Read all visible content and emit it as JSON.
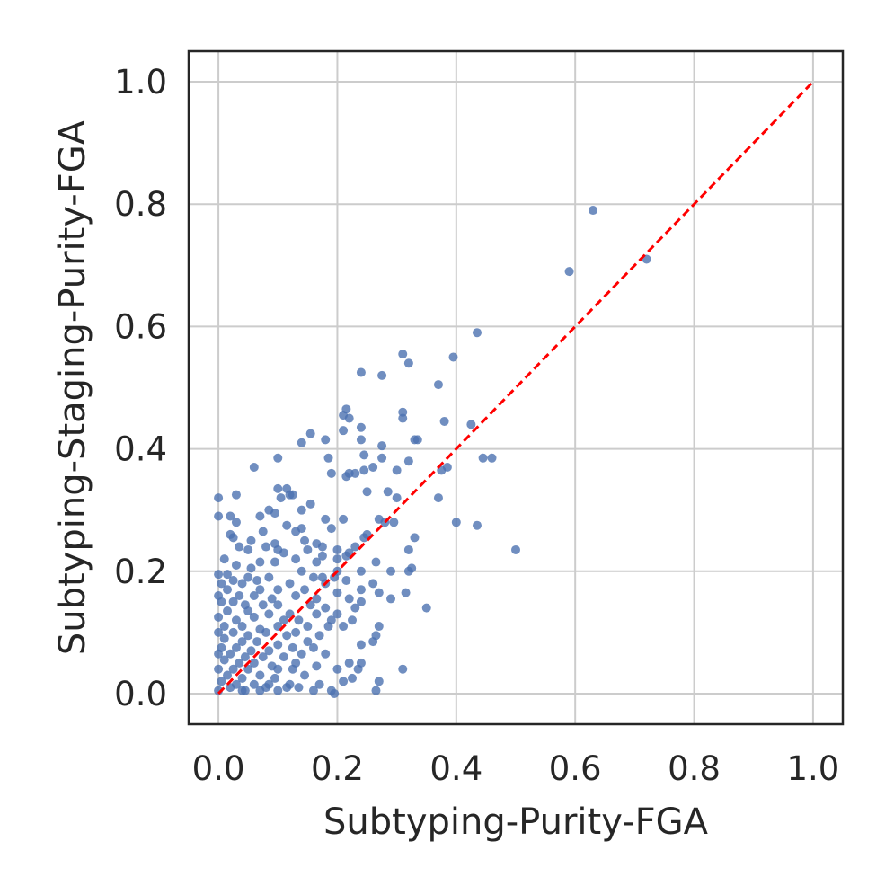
{
  "chart_data": {
    "type": "scatter",
    "title": "",
    "xlabel": "Subtyping-Purity-FGA",
    "ylabel": "Subtyping-Staging-Purity-FGA",
    "xlim": [
      -0.05,
      1.05
    ],
    "ylim": [
      -0.05,
      1.05
    ],
    "xticks": [
      "0.0",
      "0.2",
      "0.4",
      "0.6",
      "0.8",
      "1.0"
    ],
    "yticks": [
      "0.0",
      "0.2",
      "0.4",
      "0.6",
      "0.8",
      "1.0"
    ],
    "xtick_values": [
      0.0,
      0.2,
      0.4,
      0.6,
      0.8,
      1.0
    ],
    "ytick_values": [
      0.0,
      0.2,
      0.4,
      0.6,
      0.8,
      1.0
    ],
    "grid": true,
    "reference_line": {
      "x": [
        0,
        1
      ],
      "y": [
        0,
        1
      ],
      "style": "dashed",
      "color": "#ff0000"
    },
    "point_color": "#4c72b0",
    "points": [
      [
        0.63,
        0.79
      ],
      [
        0.72,
        0.71
      ],
      [
        0.59,
        0.69
      ],
      [
        0.435,
        0.59
      ],
      [
        0.31,
        0.555
      ],
      [
        0.32,
        0.54
      ],
      [
        0.395,
        0.55
      ],
      [
        0.24,
        0.525
      ],
      [
        0.275,
        0.52
      ],
      [
        0.37,
        0.505
      ],
      [
        0.215,
        0.465
      ],
      [
        0.31,
        0.46
      ],
      [
        0.21,
        0.455
      ],
      [
        0.22,
        0.45
      ],
      [
        0.31,
        0.45
      ],
      [
        0.38,
        0.445
      ],
      [
        0.425,
        0.44
      ],
      [
        0.24,
        0.435
      ],
      [
        0.155,
        0.425
      ],
      [
        0.21,
        0.43
      ],
      [
        0.33,
        0.415
      ],
      [
        0.335,
        0.415
      ],
      [
        0.14,
        0.41
      ],
      [
        0.18,
        0.415
      ],
      [
        0.24,
        0.415
      ],
      [
        0.275,
        0.405
      ],
      [
        0.245,
        0.39
      ],
      [
        0.275,
        0.385
      ],
      [
        0.185,
        0.385
      ],
      [
        0.1,
        0.385
      ],
      [
        0.32,
        0.38
      ],
      [
        0.445,
        0.385
      ],
      [
        0.46,
        0.385
      ],
      [
        0.385,
        0.37
      ],
      [
        0.375,
        0.365
      ],
      [
        0.3,
        0.365
      ],
      [
        0.245,
        0.365
      ],
      [
        0.23,
        0.36
      ],
      [
        0.215,
        0.355
      ],
      [
        0.22,
        0.36
      ],
      [
        0.19,
        0.36
      ],
      [
        0.26,
        0.37
      ],
      [
        0.06,
        0.37
      ],
      [
        0.1,
        0.335
      ],
      [
        0.115,
        0.335
      ],
      [
        0.12,
        0.325
      ],
      [
        0.125,
        0.325
      ],
      [
        0.105,
        0.32
      ],
      [
        0.285,
        0.33
      ],
      [
        0.25,
        0.33
      ],
      [
        0.03,
        0.325
      ],
      [
        0.0,
        0.32
      ],
      [
        0.3,
        0.32
      ],
      [
        0.37,
        0.32
      ],
      [
        0.155,
        0.31
      ],
      [
        0.14,
        0.3
      ],
      [
        0.085,
        0.3
      ],
      [
        0.095,
        0.295
      ],
      [
        0.07,
        0.29
      ],
      [
        0.0,
        0.29
      ],
      [
        0.02,
        0.29
      ],
      [
        0.03,
        0.28
      ],
      [
        0.18,
        0.285
      ],
      [
        0.21,
        0.285
      ],
      [
        0.27,
        0.285
      ],
      [
        0.28,
        0.28
      ],
      [
        0.295,
        0.28
      ],
      [
        0.4,
        0.28
      ],
      [
        0.435,
        0.275
      ],
      [
        0.115,
        0.275
      ],
      [
        0.13,
        0.265
      ],
      [
        0.14,
        0.27
      ],
      [
        0.19,
        0.27
      ],
      [
        0.075,
        0.265
      ],
      [
        0.02,
        0.26
      ],
      [
        0.025,
        0.255
      ],
      [
        0.25,
        0.26
      ],
      [
        0.245,
        0.255
      ],
      [
        0.33,
        0.255
      ],
      [
        0.055,
        0.25
      ],
      [
        0.145,
        0.25
      ],
      [
        0.08,
        0.24
      ],
      [
        0.095,
        0.245
      ],
      [
        0.165,
        0.245
      ],
      [
        0.175,
        0.24
      ],
      [
        0.23,
        0.24
      ],
      [
        0.035,
        0.24
      ],
      [
        0.05,
        0.235
      ],
      [
        0.1,
        0.235
      ],
      [
        0.11,
        0.23
      ],
      [
        0.15,
        0.235
      ],
      [
        0.2,
        0.235
      ],
      [
        0.22,
        0.23
      ],
      [
        0.5,
        0.235
      ],
      [
        0.32,
        0.235
      ],
      [
        0.175,
        0.225
      ],
      [
        0.2,
        0.22
      ],
      [
        0.215,
        0.225
      ],
      [
        0.165,
        0.215
      ],
      [
        0.13,
        0.22
      ],
      [
        0.07,
        0.215
      ],
      [
        0.095,
        0.215
      ],
      [
        0.01,
        0.22
      ],
      [
        0.03,
        0.21
      ],
      [
        0.265,
        0.215
      ],
      [
        0.32,
        0.2
      ],
      [
        0.325,
        0.205
      ],
      [
        0.29,
        0.2
      ],
      [
        0.055,
        0.205
      ],
      [
        0.14,
        0.2
      ],
      [
        0.2,
        0.2
      ],
      [
        0.24,
        0.2
      ],
      [
        0.0,
        0.195
      ],
      [
        0.015,
        0.195
      ],
      [
        0.025,
        0.185
      ],
      [
        0.05,
        0.19
      ],
      [
        0.085,
        0.19
      ],
      [
        0.16,
        0.19
      ],
      [
        0.175,
        0.19
      ],
      [
        0.195,
        0.19
      ],
      [
        0.005,
        0.18
      ],
      [
        0.04,
        0.18
      ],
      [
        0.065,
        0.185
      ],
      [
        0.12,
        0.18
      ],
      [
        0.18,
        0.18
      ],
      [
        0.215,
        0.185
      ],
      [
        0.26,
        0.18
      ],
      [
        0.145,
        0.17
      ],
      [
        0.1,
        0.17
      ],
      [
        0.07,
        0.17
      ],
      [
        0.015,
        0.17
      ],
      [
        0.2,
        0.165
      ],
      [
        0.24,
        0.17
      ],
      [
        0.27,
        0.165
      ],
      [
        0.315,
        0.165
      ],
      [
        0.0,
        0.16
      ],
      [
        0.035,
        0.16
      ],
      [
        0.06,
        0.16
      ],
      [
        0.09,
        0.155
      ],
      [
        0.13,
        0.16
      ],
      [
        0.165,
        0.155
      ],
      [
        0.22,
        0.155
      ],
      [
        0.29,
        0.155
      ],
      [
        0.005,
        0.15
      ],
      [
        0.025,
        0.15
      ],
      [
        0.045,
        0.145
      ],
      [
        0.075,
        0.145
      ],
      [
        0.1,
        0.145
      ],
      [
        0.155,
        0.145
      ],
      [
        0.18,
        0.14
      ],
      [
        0.35,
        0.14
      ],
      [
        0.23,
        0.14
      ],
      [
        0.24,
        0.15
      ],
      [
        0.015,
        0.135
      ],
      [
        0.05,
        0.135
      ],
      [
        0.085,
        0.13
      ],
      [
        0.12,
        0.13
      ],
      [
        0.165,
        0.13
      ],
      [
        0.2,
        0.13
      ],
      [
        0.0,
        0.125
      ],
      [
        0.03,
        0.12
      ],
      [
        0.06,
        0.125
      ],
      [
        0.11,
        0.12
      ],
      [
        0.135,
        0.12
      ],
      [
        0.19,
        0.12
      ],
      [
        0.225,
        0.12
      ],
      [
        0.01,
        0.11
      ],
      [
        0.04,
        0.11
      ],
      [
        0.07,
        0.105
      ],
      [
        0.1,
        0.11
      ],
      [
        0.15,
        0.11
      ],
      [
        0.185,
        0.11
      ],
      [
        0.21,
        0.11
      ],
      [
        0.27,
        0.11
      ],
      [
        0.0,
        0.1
      ],
      [
        0.025,
        0.1
      ],
      [
        0.05,
        0.095
      ],
      [
        0.08,
        0.1
      ],
      [
        0.115,
        0.095
      ],
      [
        0.13,
        0.1
      ],
      [
        0.17,
        0.095
      ],
      [
        0.265,
        0.095
      ],
      [
        0.01,
        0.09
      ],
      [
        0.04,
        0.085
      ],
      [
        0.065,
        0.085
      ],
      [
        0.1,
        0.08
      ],
      [
        0.15,
        0.085
      ],
      [
        0.005,
        0.075
      ],
      [
        0.03,
        0.075
      ],
      [
        0.055,
        0.07
      ],
      [
        0.085,
        0.07
      ],
      [
        0.125,
        0.075
      ],
      [
        0.16,
        0.075
      ],
      [
        0.24,
        0.08
      ],
      [
        0.26,
        0.085
      ],
      [
        0.0,
        0.065
      ],
      [
        0.02,
        0.065
      ],
      [
        0.045,
        0.06
      ],
      [
        0.075,
        0.06
      ],
      [
        0.11,
        0.06
      ],
      [
        0.14,
        0.065
      ],
      [
        0.18,
        0.065
      ],
      [
        0.01,
        0.055
      ],
      [
        0.035,
        0.05
      ],
      [
        0.06,
        0.05
      ],
      [
        0.09,
        0.045
      ],
      [
        0.13,
        0.05
      ],
      [
        0.165,
        0.045
      ],
      [
        0.22,
        0.05
      ],
      [
        0.24,
        0.05
      ],
      [
        0.0,
        0.04
      ],
      [
        0.025,
        0.04
      ],
      [
        0.05,
        0.04
      ],
      [
        0.1,
        0.04
      ],
      [
        0.125,
        0.04
      ],
      [
        0.2,
        0.04
      ],
      [
        0.235,
        0.04
      ],
      [
        0.31,
        0.04
      ],
      [
        0.015,
        0.03
      ],
      [
        0.04,
        0.025
      ],
      [
        0.07,
        0.03
      ],
      [
        0.095,
        0.025
      ],
      [
        0.145,
        0.03
      ],
      [
        0.005,
        0.02
      ],
      [
        0.03,
        0.015
      ],
      [
        0.06,
        0.015
      ],
      [
        0.085,
        0.015
      ],
      [
        0.12,
        0.015
      ],
      [
        0.21,
        0.02
      ],
      [
        0.27,
        0.02
      ],
      [
        0.0,
        0.005
      ],
      [
        0.02,
        0.01
      ],
      [
        0.045,
        0.005
      ],
      [
        0.07,
        0.005
      ],
      [
        0.1,
        0.005
      ],
      [
        0.16,
        0.005
      ],
      [
        0.19,
        0.005
      ],
      [
        0.265,
        0.005
      ],
      [
        0.04,
        0.005
      ],
      [
        0.08,
        0.01
      ],
      [
        0.115,
        0.01
      ],
      [
        0.135,
        0.01
      ],
      [
        0.195,
        0.0
      ],
      [
        0.17,
        0.015
      ],
      [
        0.225,
        0.025
      ]
    ]
  }
}
